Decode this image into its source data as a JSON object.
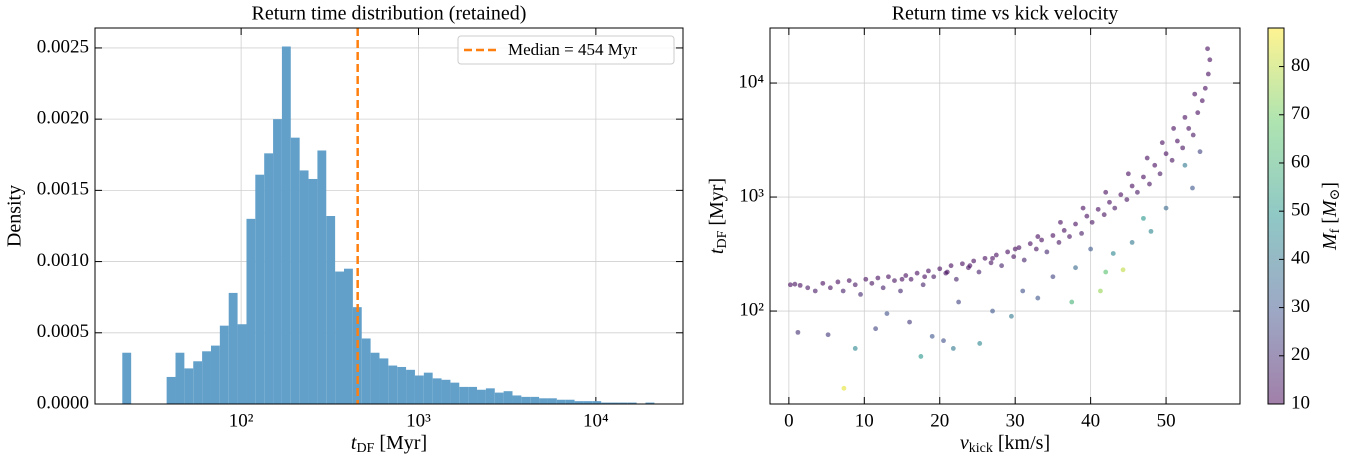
{
  "chart_data": [
    {
      "type": "histogram",
      "title": "Return time distribution (retained)",
      "xlabel": [
        "t",
        "DF",
        " [Myr]"
      ],
      "ylabel": "Density",
      "xscale": "log",
      "xlim": [
        15,
        31000
      ],
      "ylim": [
        0,
        0.00264
      ],
      "xticks": [
        {
          "value": 100,
          "label": "10²"
        },
        {
          "value": 1000,
          "label": "10³"
        },
        {
          "value": 10000,
          "label": "10⁴"
        }
      ],
      "yticks": [
        {
          "value": 0,
          "label": "0.0000"
        },
        {
          "value": 0.0005,
          "label": "0.0005"
        },
        {
          "value": 0.001,
          "label": "0.0010"
        },
        {
          "value": 0.0015,
          "label": "0.0015"
        },
        {
          "value": 0.002,
          "label": "0.0020"
        },
        {
          "value": 0.0025,
          "label": "0.0025"
        }
      ],
      "grid": true,
      "color": "#62a0ca",
      "bins": [
        21.38,
        23.99,
        26.92,
        30.2,
        33.88,
        38.02,
        42.66,
        47.86,
        53.7,
        60.26,
        67.61,
        75.86,
        85.11,
        95.5,
        107.2,
        120.2,
        134.9,
        151.4,
        169.8,
        190.5,
        213.8,
        239.9,
        269.2,
        302,
        338.8,
        380.2,
        426.6,
        478.6,
        537,
        602.6,
        676.1,
        758.6,
        851.1,
        955,
        1072,
        1202,
        1349,
        1514,
        1698,
        1905,
        2138,
        2399,
        2692,
        3020,
        3388,
        3802,
        4266,
        4786,
        5370,
        6026,
        6761,
        7586,
        8511,
        9550,
        10720,
        12020,
        13490,
        15140,
        16980,
        19050,
        21380
      ],
      "values": [
        0.00036,
        0,
        0,
        0,
        0,
        0.00019,
        0.00036,
        0.00025,
        0.0003,
        0.00037,
        0.00041,
        0.00055,
        0.00078,
        0.00056,
        0.0013,
        0.00161,
        0.00176,
        0.002,
        0.00251,
        0.00187,
        0.00164,
        0.00158,
        0.00178,
        0.00132,
        0.00093,
        0.00095,
        0.00068,
        0.00046,
        0.00036,
        0.00032,
        0.00027,
        0.00026,
        0.00024,
        0.0002,
        0.00022,
        0.00018,
        0.00017,
        0.00015,
        0.00012,
        0.00012,
        0.0001,
        0.00011,
        8e-05,
        9e-05,
        6e-05,
        5e-05,
        5e-05,
        4e-05,
        4e-05,
        3e-05,
        3e-05,
        2e-05,
        2e-05,
        2e-05,
        1e-05,
        1e-05,
        1e-05,
        1e-05,
        0,
        1e-05
      ],
      "median": 454,
      "median_color": "#ff7f0e",
      "legend_label": "Median = 454 Myr",
      "legend": "upper right"
    },
    {
      "type": "scatter",
      "title": "Return time vs kick velocity",
      "xlabel": [
        "v",
        "kick",
        " [km/s]"
      ],
      "ylabel": [
        "t",
        "DF",
        " [Myr]"
      ],
      "yscale": "log",
      "xlim": [
        -2.5,
        59.8
      ],
      "ylim": [
        15.3,
        30400
      ],
      "xticks": [
        0,
        10,
        20,
        30,
        40,
        50
      ],
      "yticks": [
        {
          "value": 100,
          "label": "10²"
        },
        {
          "value": 1000,
          "label": "10³"
        },
        {
          "value": 10000,
          "label": "10⁴"
        }
      ],
      "grid": true,
      "x": [
        0.2,
        0.8,
        1.5,
        2.5,
        3.5,
        4.5,
        5.5,
        6.5,
        7.2,
        8,
        8.8,
        9.5,
        10.2,
        11,
        11.8,
        12.5,
        13.2,
        14,
        14.8,
        15.5,
        16.2,
        17,
        17.8,
        18.5,
        19.2,
        20,
        20.8,
        21.5,
        22.2,
        23,
        23.8,
        24.5,
        25.2,
        26,
        26.8,
        27.5,
        28.2,
        29,
        29.8,
        30.5,
        31.2,
        32,
        32.8,
        33.5,
        34.2,
        35,
        35.8,
        36.5,
        37.2,
        38,
        38.8,
        39.5,
        40.2,
        41,
        41.8,
        42.5,
        43.2,
        44,
        44.8,
        45.5,
        46.2,
        47,
        47.8,
        48.5,
        49.2,
        50,
        50.8,
        51.5,
        52.2,
        53,
        53.6,
        54.2,
        54.8,
        55.2,
        55.6,
        55.8,
        55.5,
        53.8,
        52.5,
        51,
        49.5,
        47.5,
        45,
        42,
        39,
        36,
        33,
        30,
        27,
        24,
        21,
        18,
        15,
        1.2,
        5.2,
        7.3,
        8.8,
        11.5,
        13,
        16,
        17.5,
        19,
        20.5,
        21.8,
        22.5,
        25.3,
        27,
        29.5,
        31,
        33,
        35,
        37.5,
        38,
        40,
        41.3,
        42,
        43,
        44.3,
        45.5,
        47,
        48,
        50,
        52.5,
        53.5,
        54.5
      ],
      "y": [
        170,
        172,
        168,
        160,
        150,
        175,
        160,
        180,
        150,
        185,
        170,
        140,
        190,
        175,
        195,
        160,
        200,
        185,
        150,
        205,
        190,
        215,
        170,
        225,
        200,
        235,
        215,
        250,
        190,
        260,
        240,
        275,
        220,
        290,
        265,
        310,
        250,
        330,
        300,
        360,
        280,
        390,
        350,
        420,
        330,
        460,
        400,
        510,
        450,
        580,
        480,
        680,
        600,
        780,
        700,
        900,
        800,
        1050,
        950,
        1250,
        1100,
        1500,
        1300,
        1900,
        1600,
        2400,
        2100,
        3100,
        2700,
        4000,
        3500,
        5500,
        7000,
        9000,
        12000,
        16000,
        20000,
        8000,
        5000,
        4000,
        3000,
        2200,
        1600,
        1100,
        800,
        600,
        450,
        350,
        290,
        250,
        220,
        200,
        190,
        65,
        62,
        21,
        47,
        70,
        95,
        80,
        40,
        60,
        55,
        47,
        120,
        52,
        100,
        90,
        150,
        130,
        200,
        120,
        240,
        350,
        150,
        220,
        320,
        230,
        400,
        650,
        500,
        800,
        1900,
        1200,
        2500
      ],
      "c": [
        12,
        13,
        12,
        14,
        15,
        12,
        13,
        12,
        16,
        12,
        14,
        18,
        12,
        13,
        12,
        16,
        12,
        13,
        18,
        12,
        13,
        12,
        17,
        12,
        14,
        12,
        13,
        12,
        17,
        12,
        13,
        12,
        16,
        12,
        13,
        12,
        17,
        12,
        13,
        12,
        17,
        12,
        13,
        12,
        18,
        12,
        14,
        12,
        13,
        12,
        15,
        12,
        13,
        12,
        13,
        12,
        14,
        12,
        13,
        12,
        14,
        12,
        13,
        12,
        14,
        12,
        13,
        12,
        13,
        12,
        14,
        12,
        12,
        12,
        12,
        12,
        12,
        12,
        12,
        12,
        12,
        12,
        12,
        12,
        12,
        12,
        12,
        12,
        12,
        12,
        12,
        12,
        12,
        20,
        22,
        85,
        45,
        25,
        28,
        22,
        50,
        30,
        28,
        40,
        25,
        45,
        30,
        40,
        28,
        30,
        25,
        60,
        35,
        30,
        75,
        65,
        45,
        80,
        40,
        50,
        45,
        35,
        40,
        30,
        25
      ],
      "colorbar": {
        "label": [
          "M",
          "f",
          " [",
          "M",
          "⊙",
          "]"
        ],
        "cmap": "viridis",
        "lim": [
          10,
          88
        ],
        "ticks": [
          10,
          20,
          30,
          40,
          50,
          60,
          70,
          80
        ]
      }
    }
  ]
}
